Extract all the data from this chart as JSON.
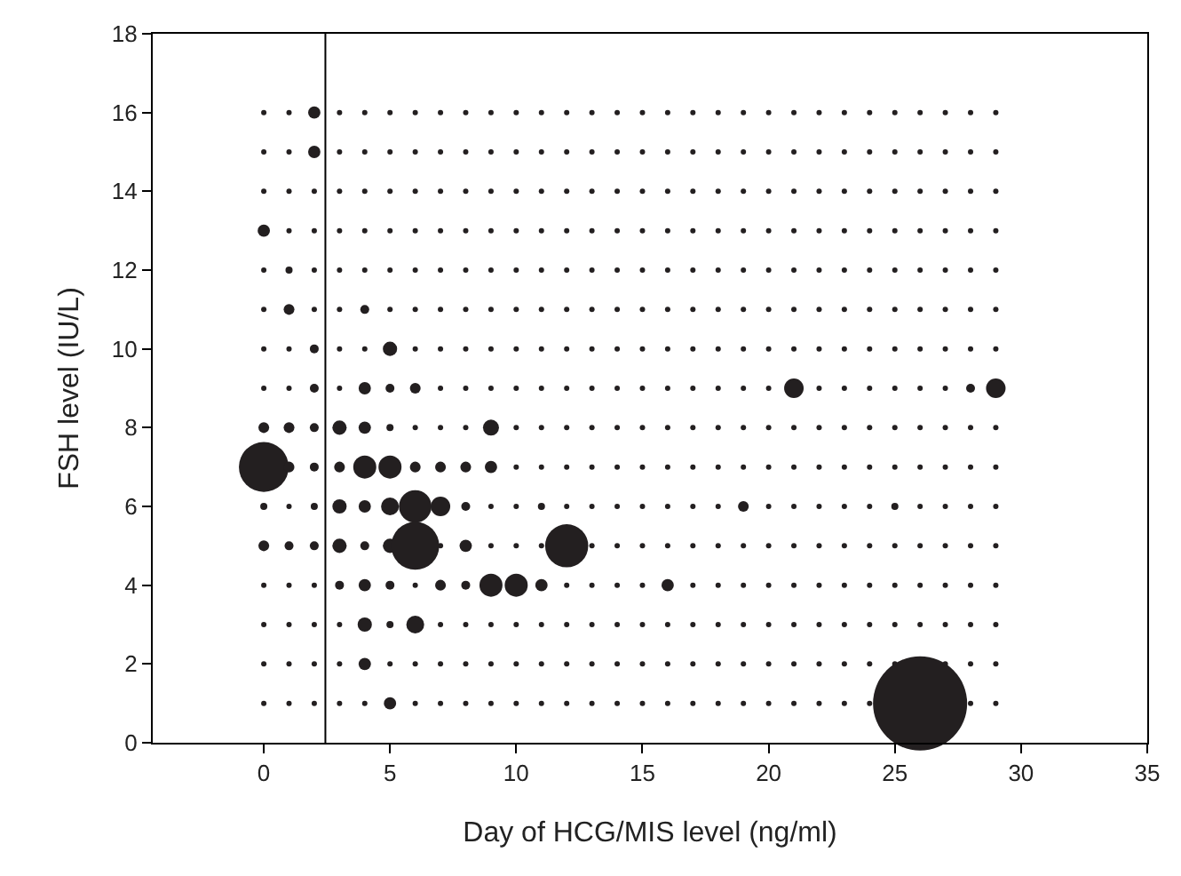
{
  "chart_data": {
    "type": "bubble",
    "xlabel": "Day of HCG/MIS level (ng/ml)",
    "ylabel": "FSH level (IU/L)",
    "xlim": [
      -4.4,
      35
    ],
    "xticks": [
      0,
      5,
      10,
      15,
      20,
      25,
      30,
      35
    ],
    "ylim": [
      0,
      18
    ],
    "yticks": [
      0,
      2,
      4,
      6,
      8,
      10,
      12,
      14,
      16,
      18
    ],
    "ref_lines": [
      {
        "axis": "x",
        "value": 2.44,
        "color": "#000000"
      }
    ],
    "series": [
      {
        "color": "#231f20",
        "x": [
          2,
          2,
          0,
          1,
          1,
          4,
          2,
          5,
          2,
          4,
          5,
          6,
          21,
          28,
          29,
          0,
          1,
          2,
          3,
          4,
          5,
          9,
          0,
          1,
          2,
          3,
          4,
          5,
          6,
          7,
          8,
          9,
          10,
          0,
          1,
          2,
          3,
          4,
          5,
          6,
          7,
          8,
          11,
          19,
          25,
          0,
          1,
          2,
          3,
          4,
          5,
          6,
          8,
          12,
          3,
          4,
          5,
          7,
          8,
          9,
          10,
          11,
          16,
          4,
          5,
          6,
          2,
          4,
          5,
          26
        ],
        "values": [
          16,
          15,
          13,
          12,
          11,
          11,
          10,
          10,
          9,
          9,
          9,
          9,
          9,
          9,
          9,
          8,
          8,
          8,
          8,
          8,
          8,
          8,
          7,
          7,
          7,
          7,
          7,
          7,
          7,
          7,
          7,
          7,
          7,
          6,
          6,
          6,
          6,
          6,
          6,
          6,
          6,
          6,
          6,
          6,
          6,
          5,
          5,
          5,
          5,
          5,
          5,
          5,
          5,
          5,
          4,
          4,
          4,
          4,
          4,
          4,
          4,
          4,
          4,
          3,
          3,
          3,
          2,
          2,
          1,
          1
        ],
        "sizes": [
          0.017,
          0.017,
          0.017,
          0.0057,
          0.013,
          0.0089,
          0.0089,
          0.023,
          0.0089,
          0.017,
          0.0089,
          0.013,
          0.043,
          0.0089,
          0.043,
          0.013,
          0.013,
          0.0089,
          0.023,
          0.017,
          0.0057,
          0.029,
          0.28,
          0.013,
          0.0089,
          0.013,
          0.06,
          0.06,
          0.013,
          0.013,
          0.013,
          0.017,
          0.0032,
          0.0057,
          0.0032,
          0.0057,
          0.023,
          0.017,
          0.036,
          0.12,
          0.043,
          0.0089,
          0.0057,
          0.013,
          0.0057,
          0.013,
          0.0089,
          0.0089,
          0.023,
          0.0089,
          0.023,
          0.26,
          0.017,
          0.21,
          0.0089,
          0.017,
          0.0089,
          0.013,
          0.0089,
          0.06,
          0.06,
          0.017,
          0.017,
          0.023,
          0.0057,
          0.036,
          0.0032,
          0.017,
          0.017,
          1
        ]
      },
      {
        "type": "scatter",
        "color": "#231f20",
        "x": [
          0,
          1,
          3,
          4,
          5,
          6,
          7,
          8,
          9,
          10,
          11,
          12,
          13,
          14,
          15,
          16,
          17,
          18,
          19,
          20,
          21,
          22,
          23,
          24,
          25,
          26,
          27,
          28,
          29
        ],
        "values": [
          16,
          16,
          16,
          16,
          16,
          16,
          16,
          16,
          16,
          16,
          16,
          16,
          16,
          16,
          16,
          16,
          16,
          16,
          16,
          16,
          16,
          16,
          16,
          16,
          16,
          16,
          16,
          16,
          16
        ]
      },
      {
        "type": "scatter",
        "color": "#231f20",
        "x": [
          0,
          1,
          3,
          4,
          5,
          6,
          7,
          8,
          9,
          10,
          11,
          12,
          13,
          14,
          15,
          16,
          17,
          18,
          19,
          20,
          21,
          22,
          23,
          24,
          25,
          26,
          27,
          28,
          29
        ],
        "values": [
          15,
          15,
          15,
          15,
          15,
          15,
          15,
          15,
          15,
          15,
          15,
          15,
          15,
          15,
          15,
          15,
          15,
          15,
          15,
          15,
          15,
          15,
          15,
          15,
          15,
          15,
          15,
          15,
          15
        ]
      },
      {
        "type": "scatter",
        "color": "#231f20",
        "x": [
          0,
          1,
          2,
          3,
          4,
          5,
          6,
          7,
          8,
          9,
          10,
          11,
          12,
          13,
          14,
          15,
          16,
          17,
          18,
          19,
          20,
          21,
          22,
          23,
          24,
          25,
          26,
          27,
          28,
          29
        ],
        "values": [
          14,
          14,
          14,
          14,
          14,
          14,
          14,
          14,
          14,
          14,
          14,
          14,
          14,
          14,
          14,
          14,
          14,
          14,
          14,
          14,
          14,
          14,
          14,
          14,
          14,
          14,
          14,
          14,
          14,
          14
        ]
      },
      {
        "type": "scatter",
        "color": "#231f20",
        "x": [
          1,
          2,
          3,
          4,
          5,
          6,
          7,
          8,
          9,
          10,
          11,
          12,
          13,
          14,
          15,
          16,
          17,
          18,
          19,
          20,
          21,
          22,
          23,
          24,
          25,
          26,
          27,
          28,
          29
        ],
        "values": [
          13,
          13,
          13,
          13,
          13,
          13,
          13,
          13,
          13,
          13,
          13,
          13,
          13,
          13,
          13,
          13,
          13,
          13,
          13,
          13,
          13,
          13,
          13,
          13,
          13,
          13,
          13,
          13,
          13
        ]
      },
      {
        "type": "scatter",
        "color": "#231f20",
        "x": [
          0,
          2,
          3,
          4,
          5,
          6,
          7,
          8,
          9,
          10,
          11,
          12,
          13,
          14,
          15,
          16,
          17,
          18,
          19,
          20,
          21,
          22,
          23,
          24,
          25,
          26,
          27,
          28,
          29
        ],
        "values": [
          12,
          12,
          12,
          12,
          12,
          12,
          12,
          12,
          12,
          12,
          12,
          12,
          12,
          12,
          12,
          12,
          12,
          12,
          12,
          12,
          12,
          12,
          12,
          12,
          12,
          12,
          12,
          12,
          12
        ]
      },
      {
        "type": "scatter",
        "color": "#231f20",
        "x": [
          0,
          2,
          3,
          5,
          6,
          7,
          8,
          9,
          10,
          11,
          12,
          13,
          14,
          15,
          16,
          17,
          18,
          19,
          20,
          21,
          22,
          23,
          24,
          25,
          26,
          27,
          28,
          29
        ],
        "values": [
          11,
          11,
          11,
          11,
          11,
          11,
          11,
          11,
          11,
          11,
          11,
          11,
          11,
          11,
          11,
          11,
          11,
          11,
          11,
          11,
          11,
          11,
          11,
          11,
          11,
          11,
          11,
          11
        ]
      },
      {
        "type": "scatter",
        "color": "#231f20",
        "x": [
          0,
          1,
          3,
          4,
          6,
          7,
          8,
          9,
          10,
          11,
          12,
          13,
          14,
          15,
          16,
          17,
          18,
          19,
          20,
          21,
          22,
          23,
          24,
          25,
          26,
          27,
          28,
          29
        ],
        "values": [
          10,
          10,
          10,
          10,
          10,
          10,
          10,
          10,
          10,
          10,
          10,
          10,
          10,
          10,
          10,
          10,
          10,
          10,
          10,
          10,
          10,
          10,
          10,
          10,
          10,
          10,
          10,
          10
        ]
      },
      {
        "type": "scatter",
        "color": "#231f20",
        "x": [
          0,
          1,
          3,
          7,
          8,
          9,
          10,
          11,
          12,
          13,
          14,
          15,
          16,
          17,
          18,
          19,
          20,
          22,
          23,
          24,
          25,
          26,
          27
        ],
        "values": [
          9,
          9,
          9,
          9,
          9,
          9,
          9,
          9,
          9,
          9,
          9,
          9,
          9,
          9,
          9,
          9,
          9,
          9,
          9,
          9,
          9,
          9,
          9
        ]
      },
      {
        "type": "scatter",
        "color": "#231f20",
        "x": [
          6,
          7,
          8,
          10,
          11,
          12,
          13,
          14,
          15,
          16,
          17,
          18,
          19,
          20,
          21,
          22,
          23,
          24,
          25,
          26,
          27,
          28,
          29
        ],
        "values": [
          8,
          8,
          8,
          8,
          8,
          8,
          8,
          8,
          8,
          8,
          8,
          8,
          8,
          8,
          8,
          8,
          8,
          8,
          8,
          8,
          8,
          8,
          8
        ]
      },
      {
        "type": "scatter",
        "color": "#231f20",
        "x": [
          11,
          12,
          13,
          14,
          15,
          16,
          17,
          18,
          19,
          20,
          21,
          22,
          23,
          24,
          25,
          26,
          27,
          28,
          29
        ],
        "values": [
          7,
          7,
          7,
          7,
          7,
          7,
          7,
          7,
          7,
          7,
          7,
          7,
          7,
          7,
          7,
          7,
          7,
          7,
          7
        ]
      },
      {
        "type": "scatter",
        "color": "#231f20",
        "x": [
          9,
          10,
          12,
          13,
          14,
          15,
          16,
          17,
          18,
          20,
          21,
          22,
          23,
          24,
          26,
          27,
          28,
          29
        ],
        "values": [
          6,
          6,
          6,
          6,
          6,
          6,
          6,
          6,
          6,
          6,
          6,
          6,
          6,
          6,
          6,
          6,
          6,
          6
        ]
      },
      {
        "type": "scatter",
        "color": "#231f20",
        "x": [
          7,
          9,
          10,
          11,
          13,
          14,
          15,
          16,
          17,
          18,
          19,
          20,
          21,
          22,
          23,
          24,
          25,
          26,
          27,
          28,
          29
        ],
        "values": [
          5,
          5,
          5,
          5,
          5,
          5,
          5,
          5,
          5,
          5,
          5,
          5,
          5,
          5,
          5,
          5,
          5,
          5,
          5,
          5,
          5
        ]
      },
      {
        "type": "scatter",
        "color": "#231f20",
        "x": [
          0,
          1,
          2,
          6,
          12,
          13,
          14,
          15,
          17,
          18,
          19,
          20,
          21,
          22,
          23,
          24,
          25,
          26,
          27,
          28,
          29
        ],
        "values": [
          4,
          4,
          4,
          4,
          4,
          4,
          4,
          4,
          4,
          4,
          4,
          4,
          4,
          4,
          4,
          4,
          4,
          4,
          4,
          4,
          4
        ]
      },
      {
        "type": "scatter",
        "color": "#231f20",
        "x": [
          0,
          1,
          2,
          3,
          7,
          8,
          9,
          10,
          11,
          12,
          13,
          14,
          15,
          16,
          17,
          18,
          19,
          20,
          21,
          22,
          23,
          24,
          25,
          26,
          27,
          28,
          29
        ],
        "values": [
          3,
          3,
          3,
          3,
          3,
          3,
          3,
          3,
          3,
          3,
          3,
          3,
          3,
          3,
          3,
          3,
          3,
          3,
          3,
          3,
          3,
          3,
          3,
          3,
          3,
          3,
          3
        ]
      },
      {
        "type": "scatter",
        "color": "#231f20",
        "x": [
          0,
          1,
          3,
          5,
          6,
          7,
          8,
          9,
          10,
          11,
          12,
          13,
          14,
          15,
          16,
          17,
          18,
          19,
          20,
          21,
          22,
          23,
          24,
          25,
          27,
          28,
          29
        ],
        "values": [
          2,
          2,
          2,
          2,
          2,
          2,
          2,
          2,
          2,
          2,
          2,
          2,
          2,
          2,
          2,
          2,
          2,
          2,
          2,
          2,
          2,
          2,
          2,
          2,
          2,
          2,
          2
        ]
      },
      {
        "type": "scatter",
        "color": "#231f20",
        "x": [
          0,
          1,
          2,
          3,
          4,
          6,
          7,
          8,
          9,
          10,
          11,
          12,
          13,
          14,
          15,
          16,
          17,
          18,
          19,
          20,
          21,
          22,
          23,
          24,
          28,
          29
        ],
        "values": [
          1,
          1,
          1,
          1,
          1,
          1,
          1,
          1,
          1,
          1,
          1,
          1,
          1,
          1,
          1,
          1,
          1,
          1,
          1,
          1,
          1,
          1,
          1,
          1,
          1,
          1
        ]
      }
    ]
  }
}
